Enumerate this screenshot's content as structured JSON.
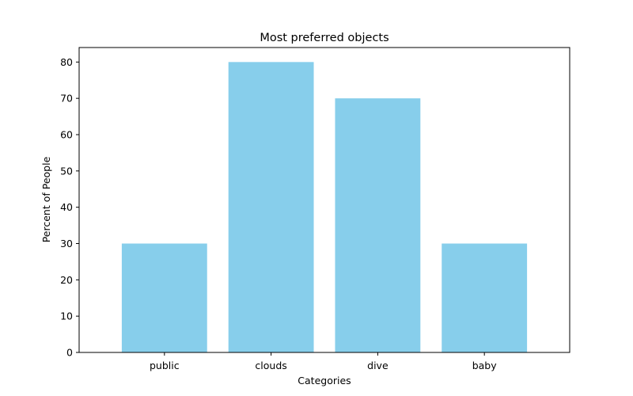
{
  "chart_data": {
    "type": "bar",
    "title": "Most preferred objects",
    "xlabel": "Categories",
    "ylabel": "Percent of People",
    "categories": [
      "public",
      "clouds",
      "dive",
      "baby"
    ],
    "values": [
      30,
      80,
      70,
      30
    ],
    "ylim": [
      0,
      84
    ],
    "yticks": [
      0,
      10,
      20,
      30,
      40,
      50,
      60,
      70,
      80
    ],
    "bar_color": "#87CEEB",
    "grid": false,
    "legend": "none"
  }
}
